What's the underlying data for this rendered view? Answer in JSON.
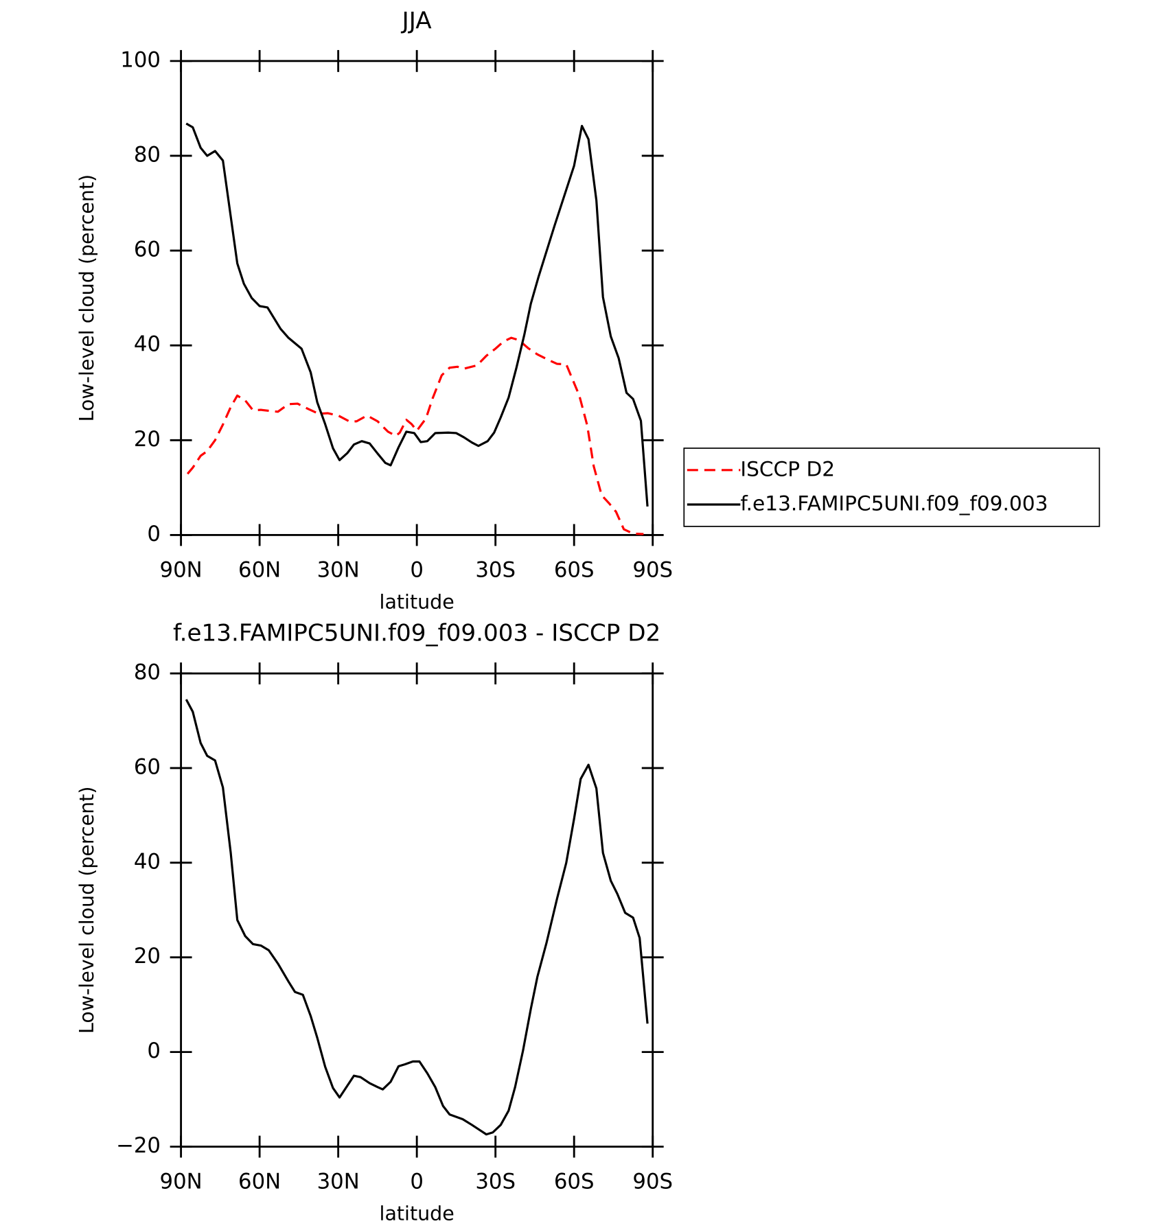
{
  "chart_data": [
    {
      "type": "line",
      "title": "JJA",
      "xlabel": "latitude",
      "ylabel": "Low-level cloud (percent)",
      "xlim": [
        90,
        -90
      ],
      "xticks": [
        {
          "value": 90,
          "label": "90N"
        },
        {
          "value": 60,
          "label": "60N"
        },
        {
          "value": 30,
          "label": "30N"
        },
        0,
        {
          "value": -30,
          "label": "30S"
        },
        {
          "value": -60,
          "label": "60S"
        },
        {
          "value": -90,
          "label": "90S"
        }
      ],
      "ylim": [
        0,
        100
      ],
      "yticks": [
        0,
        20,
        40,
        60,
        80,
        100
      ],
      "legend": "right",
      "series": [
        {
          "name": "ISCCP D2",
          "color": "#ff0000",
          "dash": true,
          "x": [
            87.5,
            85.5,
            82.5,
            80,
            77,
            74,
            71,
            68.5,
            65.5,
            62.5,
            59.5,
            56.5,
            53,
            49,
            45.5,
            41.5,
            37.5,
            34,
            30,
            25.5,
            23,
            19,
            15,
            11,
            8,
            6.5,
            4,
            2,
            0,
            -3.5,
            -6,
            -9.5,
            -12.5,
            -15.5,
            -18,
            -23,
            -26.5,
            -30,
            -33,
            -36,
            -39,
            -42.5,
            -46,
            -50,
            -53.5,
            -57,
            -62,
            -65,
            -67.5,
            -70.5,
            -73.5,
            -76,
            -79,
            -82.5,
            -86.5
          ],
          "values": [
            12.9,
            14.2,
            16.7,
            17.7,
            20,
            23.3,
            27,
            29.4,
            28.4,
            26.3,
            26.4,
            26.2,
            26,
            27.6,
            27.7,
            26.6,
            25.6,
            25.7,
            25.2,
            23.9,
            24,
            25.2,
            24,
            21.8,
            20.9,
            21.6,
            24.3,
            23.4,
            22,
            24.6,
            28.8,
            33.7,
            35.3,
            35.5,
            35.1,
            35.8,
            37.8,
            39.3,
            40.8,
            41.6,
            41.1,
            39.4,
            38.1,
            37,
            36.1,
            36,
            29.4,
            23.1,
            14.5,
            8.4,
            6.6,
            4.9,
            1.2,
            0.3,
            0.2
          ]
        },
        {
          "name": "f.e13.FAMIPC5UNI.f09_f09.003",
          "color": "#000000",
          "dash": false,
          "x": [
            88,
            85.5,
            82.5,
            80,
            77,
            74,
            68.5,
            66,
            63,
            60,
            57,
            52,
            49,
            44,
            40.5,
            38,
            35,
            32,
            29.5,
            26.5,
            24,
            21,
            18,
            15,
            12,
            10,
            7,
            4,
            1,
            -1.5,
            -4,
            -7,
            -12,
            -15,
            -18,
            -21,
            -23.5,
            -27,
            -29.5,
            -32,
            -35,
            -38,
            -41,
            -43.5,
            -46.5,
            -52.5,
            -60,
            -63,
            -65.5,
            -68.5,
            -71,
            -74,
            -77,
            -80,
            -82.5,
            -85.5,
            -88
          ],
          "values": [
            86.8,
            86,
            81.7,
            80,
            81,
            79,
            57.3,
            53,
            50,
            48.3,
            48,
            43.5,
            41.6,
            39.3,
            34.3,
            28,
            23.4,
            18.3,
            15.8,
            17.3,
            19.1,
            19.8,
            19.3,
            17.2,
            15.2,
            14.7,
            18.5,
            21.8,
            21.5,
            19.6,
            19.8,
            21.5,
            21.6,
            21.5,
            20.6,
            19.5,
            18.8,
            19.8,
            21.6,
            24.8,
            29,
            35.3,
            42.2,
            48.8,
            54.6,
            65.2,
            77.9,
            86.3,
            83.5,
            70.6,
            50.2,
            41.9,
            37.3,
            30,
            28.7,
            24.1,
            6
          ]
        }
      ]
    },
    {
      "type": "line",
      "title": "f.e13.FAMIPC5UNI.f09_f09.003 - ISCCP D2",
      "xlabel": "latitude",
      "ylabel": "Low-level cloud (percent)",
      "xlim": [
        90,
        -90
      ],
      "xticks": [
        {
          "value": 90,
          "label": "90N"
        },
        {
          "value": 60,
          "label": "60N"
        },
        {
          "value": 30,
          "label": "30N"
        },
        0,
        {
          "value": -30,
          "label": "30S"
        },
        {
          "value": -60,
          "label": "60S"
        },
        {
          "value": -90,
          "label": "90S"
        }
      ],
      "ylim": [
        -20,
        80
      ],
      "yticks": [
        {
          "value": -20,
          "label": "−20"
        },
        0,
        20,
        40,
        60,
        80
      ],
      "color": "#000000",
      "x": [
        88,
        85.5,
        82.5,
        80,
        77,
        74,
        71,
        68.5,
        65.5,
        62.5,
        59.5,
        56.5,
        53,
        49,
        46.5,
        43.5,
        40.5,
        38,
        35,
        32,
        29.5,
        26.5,
        24,
        21.5,
        18,
        15,
        13,
        10,
        7,
        4.5,
        1.5,
        -1,
        -4,
        -7,
        -10,
        -12.5,
        -17.5,
        -21,
        -24,
        -26.5,
        -29,
        -32,
        -35,
        -37.5,
        -40.5,
        -43.5,
        -46,
        -49.5,
        -53.5,
        -57,
        -60,
        -62.5,
        -65.5,
        -68.5,
        -71,
        -74,
        -76.5,
        -79.5,
        -82.5,
        -85,
        -88
      ],
      "values": [
        74.5,
        71.9,
        65.3,
        62.6,
        61.6,
        55.9,
        42.1,
        27.9,
        24.5,
        22.8,
        22.5,
        21.5,
        18.7,
        14.9,
        12.7,
        12.1,
        7.6,
        3,
        -3.1,
        -7.6,
        -9.6,
        -7.1,
        -5,
        -5.3,
        -6.6,
        -7.4,
        -7.9,
        -6.3,
        -3,
        -2.6,
        -2,
        -2,
        -4.5,
        -7.4,
        -11.4,
        -13.2,
        -14.2,
        -15.4,
        -16.5,
        -17.4,
        -17,
        -15.4,
        -12.4,
        -7.4,
        0.3,
        9.1,
        15.9,
        23.1,
        32.4,
        40,
        49.3,
        57.7,
        60.7,
        55.7,
        42.1,
        36.2,
        33.4,
        29.4,
        28.4,
        24.1,
        6
      ]
    }
  ]
}
